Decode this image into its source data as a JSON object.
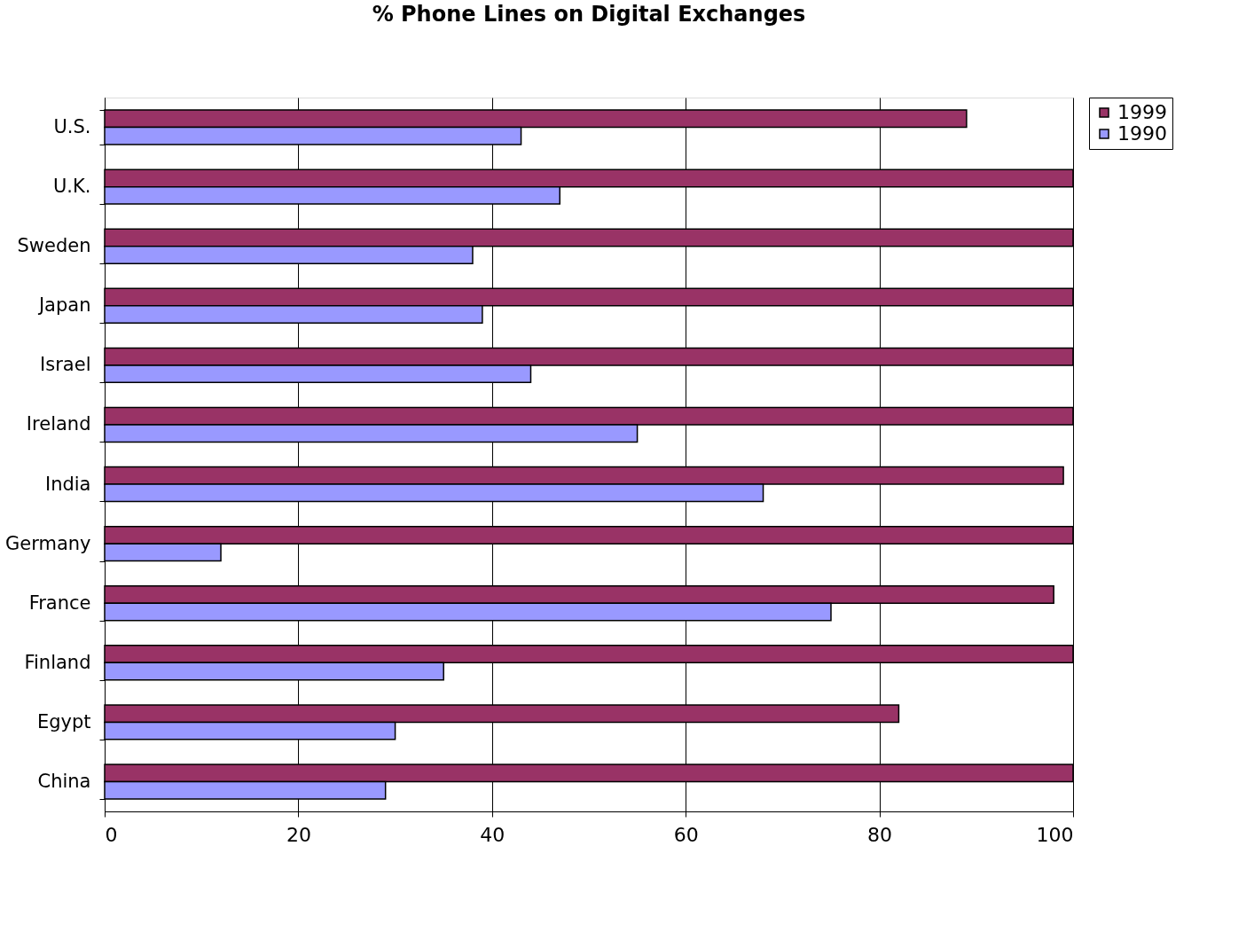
{
  "chart_data": {
    "type": "bar",
    "orientation": "horizontal",
    "title": "% Phone Lines on Digital Exchanges",
    "categories": [
      "U.S.",
      "U.K.",
      "Sweden",
      "Japan",
      "Israel",
      "Ireland",
      "India",
      "Germany",
      "France",
      "Finland",
      "Egypt",
      "China"
    ],
    "series": [
      {
        "name": "1999",
        "color": "#993366",
        "values": [
          89,
          100,
          100,
          100,
          100,
          100,
          99,
          100,
          98,
          100,
          82,
          100
        ]
      },
      {
        "name": "1990",
        "color": "#9999ff",
        "values": [
          43,
          47,
          38,
          39,
          44,
          55,
          68,
          12,
          75,
          35,
          30,
          29
        ]
      }
    ],
    "xlim": [
      0,
      100
    ],
    "xticks": [
      0,
      20,
      40,
      60,
      80,
      100
    ],
    "grid": "x",
    "legend": "right"
  }
}
